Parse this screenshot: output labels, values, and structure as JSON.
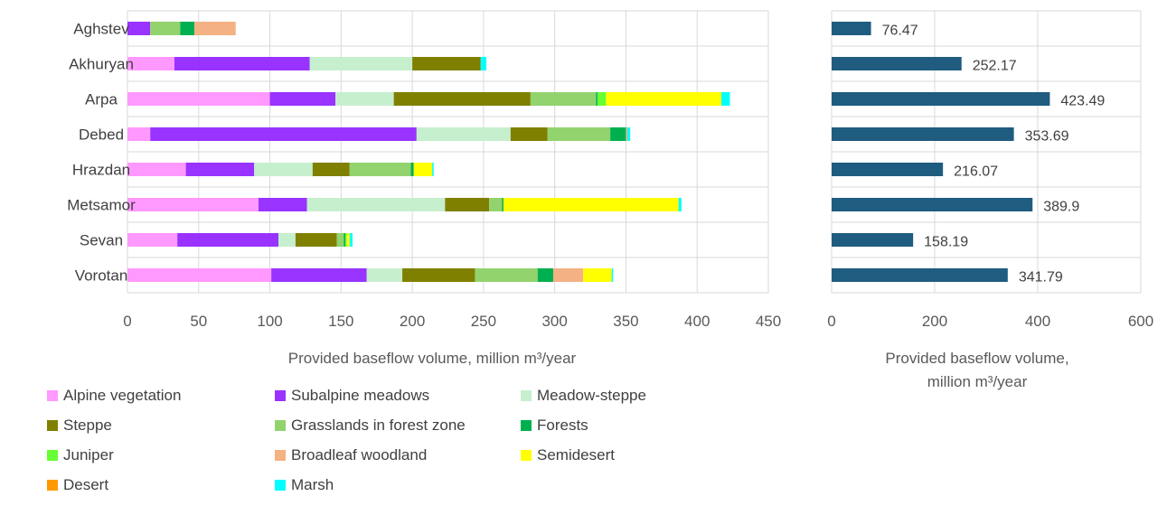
{
  "chart_data": [
    {
      "type": "bar",
      "orientation": "horizontal",
      "stacked": true,
      "categories": [
        "Aghstev",
        "Akhuryan",
        "Arpa",
        "Debed",
        "Hrazdan",
        "Metsamor",
        "Sevan",
        "Vorotan"
      ],
      "xlabel": "Provided baseflow volume, million m³/year",
      "xlim": [
        0,
        450
      ],
      "xticks": [
        "0",
        "50",
        "100",
        "150",
        "200",
        "250",
        "300",
        "350",
        "400",
        "450"
      ],
      "grid": true,
      "legend_position": "bottom",
      "series": [
        {
          "name": "Alpine vegetation",
          "color": "#FF99FF",
          "values": [
            0,
            33,
            100,
            16,
            41,
            92,
            35,
            101
          ]
        },
        {
          "name": "Subalpine meadows",
          "color": "#9933FF",
          "values": [
            16,
            95,
            46,
            187,
            48,
            34,
            71,
            67
          ]
        },
        {
          "name": "Meadow-steppe",
          "color": "#C6EFCE",
          "values": [
            0,
            72,
            41,
            66,
            41,
            97,
            12,
            25
          ]
        },
        {
          "name": "Steppe",
          "color": "#808000",
          "values": [
            0,
            48,
            96,
            26,
            26,
            31,
            29,
            51
          ]
        },
        {
          "name": "Grasslands in forest zone",
          "color": "#92D36E",
          "values": [
            21,
            0,
            46,
            44,
            43,
            9,
            5,
            44
          ]
        },
        {
          "name": "Forests",
          "color": "#00B050",
          "values": [
            10,
            0,
            1,
            11,
            2,
            1,
            1,
            11
          ]
        },
        {
          "name": "Juniper",
          "color": "#66FF33",
          "values": [
            0,
            0,
            6,
            0,
            0,
            0,
            1,
            0
          ]
        },
        {
          "name": "Broadleaf woodland",
          "color": "#F4B183",
          "values": [
            29,
            0,
            0,
            1,
            0,
            0,
            0,
            21
          ]
        },
        {
          "name": "Semidesert",
          "color": "#FFFF00",
          "values": [
            0,
            0,
            81,
            0,
            13,
            123,
            2,
            20
          ]
        },
        {
          "name": "Desert",
          "color": "#FF9900",
          "values": [
            0,
            0,
            0,
            0,
            0,
            0,
            0,
            0
          ]
        },
        {
          "name": "Marsh",
          "color": "#00FFFF",
          "values": [
            0,
            4,
            6,
            2,
            1,
            2,
            2,
            1
          ]
        }
      ]
    },
    {
      "type": "bar",
      "orientation": "horizontal",
      "stacked": false,
      "categories": [
        "Aghstev",
        "Akhuryan",
        "Arpa",
        "Debed",
        "Hrazdan",
        "Metsamor",
        "Sevan",
        "Vorotan"
      ],
      "xlabel_line1": "Provided baseflow volume,",
      "xlabel_line2": "million m³/year",
      "xlim": [
        0,
        600
      ],
      "xticks": [
        "0",
        "200",
        "400",
        "600"
      ],
      "grid": true,
      "series": [
        {
          "name": "",
          "color": "#1F5C80",
          "values": [
            76.47,
            252.17,
            423.49,
            353.69,
            216.07,
            389.9,
            158.19,
            341.79
          ]
        }
      ],
      "data_labels": [
        "76.47",
        "252.17",
        "423.49",
        "353.69",
        "216.07",
        "389.9",
        "158.19",
        "341.79"
      ]
    }
  ]
}
